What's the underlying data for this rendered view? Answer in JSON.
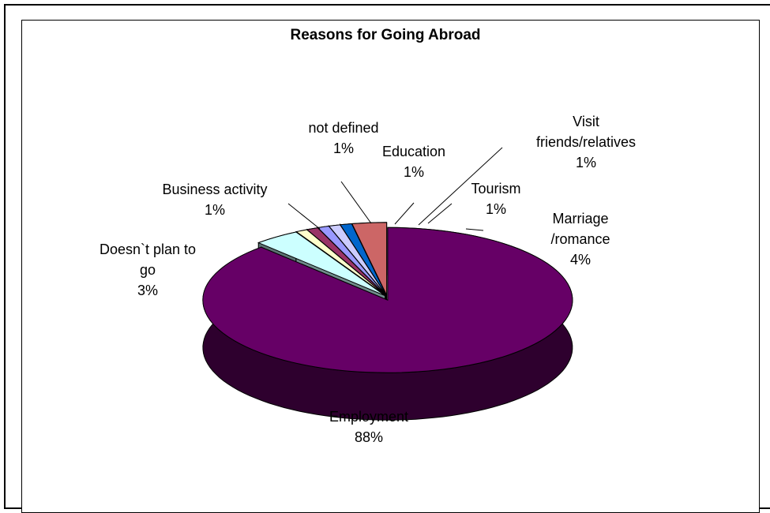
{
  "chart_data": {
    "type": "pie",
    "title": "Reasons for Going Abroad",
    "slices": [
      {
        "label_lines": [
          "Employment"
        ],
        "percent_label": "88%",
        "value": 88,
        "color": "#660066"
      },
      {
        "label_lines": [
          "Marriage",
          "/romance"
        ],
        "percent_label": "4%",
        "value": 4,
        "color": "#ccffff"
      },
      {
        "label_lines": [
          "Tourism"
        ],
        "percent_label": "1%",
        "value": 1,
        "color": "#ffffcc"
      },
      {
        "label_lines": [
          "Visit",
          "friends/relatives"
        ],
        "percent_label": "1%",
        "value": 1,
        "color": "#993366"
      },
      {
        "label_lines": [
          "Education"
        ],
        "percent_label": "1%",
        "value": 1,
        "color": "#9999ff"
      },
      {
        "label_lines": [
          "not defined"
        ],
        "percent_label": "1%",
        "value": 1,
        "color": "#ccccff"
      },
      {
        "label_lines": [
          "Business activity"
        ],
        "percent_label": "1%",
        "value": 1,
        "color": "#0066cc"
      },
      {
        "label_lines": [
          "Doesn`t plan to",
          "go"
        ],
        "percent_label": "3%",
        "value": 3,
        "color": "#cc6666"
      }
    ],
    "legend": "none",
    "style": "3d-exploded-pie"
  }
}
